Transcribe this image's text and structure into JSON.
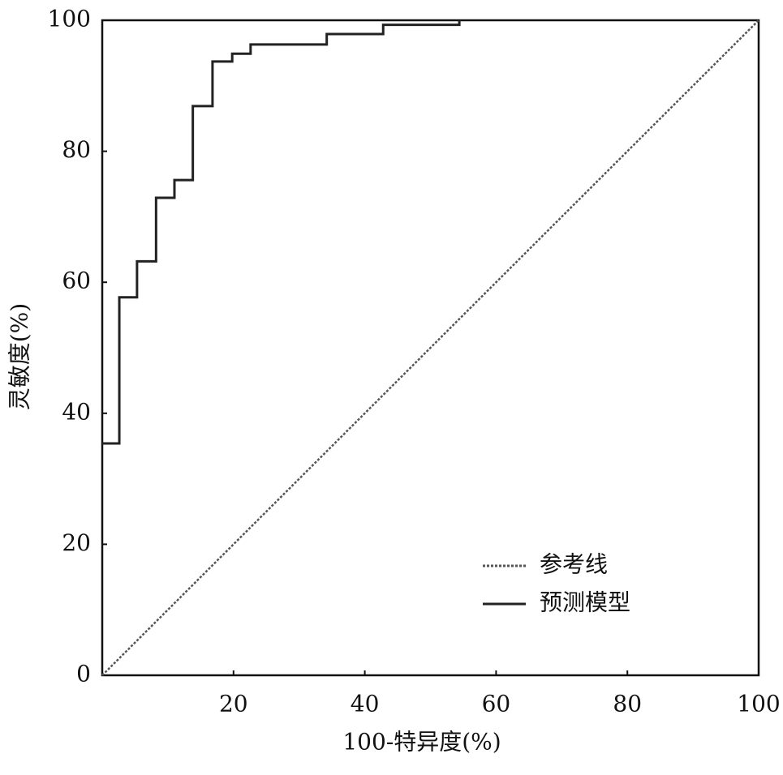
{
  "chart_data": {
    "type": "line",
    "xlabel": "100-特异度(%)",
    "ylabel": "灵敏度(%)",
    "xlim": [
      0,
      100
    ],
    "ylim": [
      0,
      100
    ],
    "xticks": [
      20,
      40,
      60,
      80,
      100
    ],
    "yticks": [
      0,
      20,
      40,
      60,
      80,
      100
    ],
    "legend": "lower right",
    "series": [
      {
        "name": "参考线",
        "color": "#555555",
        "style": "dotted",
        "x": [
          0,
          100
        ],
        "values": [
          0,
          100
        ]
      },
      {
        "name": "预测模型",
        "color": "#222222",
        "style": "solid",
        "x": [
          0,
          2.6,
          2.6,
          5.3,
          5.3,
          8.2,
          8.2,
          11.0,
          11.0,
          13.8,
          13.8,
          16.8,
          16.8,
          19.8,
          19.8,
          22.6,
          22.6,
          34.2,
          34.2,
          42.8,
          42.8,
          54.4,
          54.4
        ],
        "values": [
          35.4,
          35.4,
          57.7,
          57.7,
          63.2,
          63.2,
          72.9,
          72.9,
          75.6,
          75.6,
          86.9,
          86.9,
          93.7,
          93.7,
          94.9,
          94.9,
          96.3,
          96.3,
          97.9,
          97.9,
          99.3,
          99.3,
          100
        ]
      }
    ]
  }
}
